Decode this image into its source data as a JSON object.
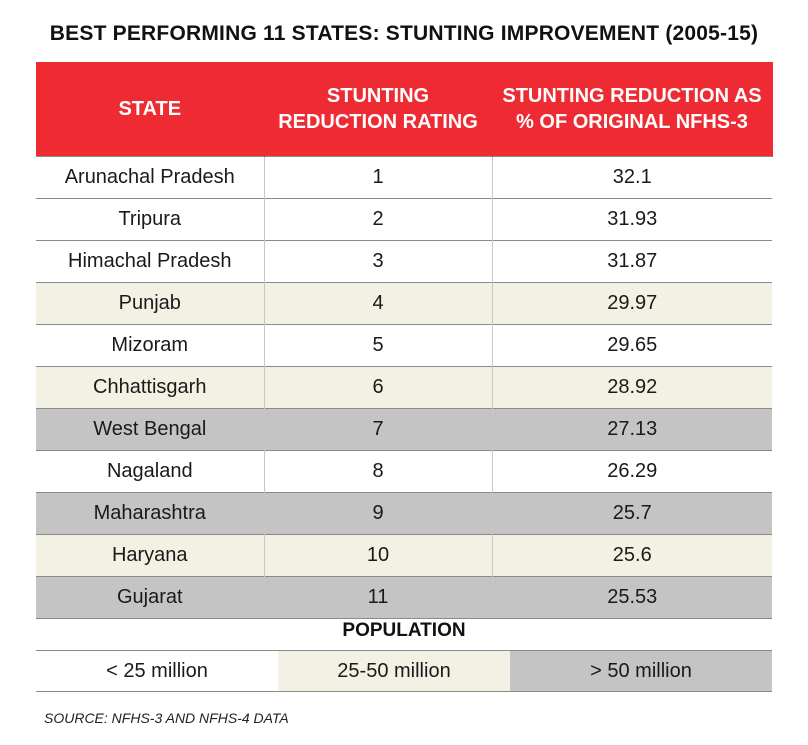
{
  "title": "BEST PERFORMING 11 STATES: STUNTING IMPROVEMENT (2005-15)",
  "colors": {
    "header_bg": "#ee2a33",
    "header_text": "#ffffff",
    "small_population": "#ffffff",
    "medium_population": "#f3f1e4",
    "large_population": "#c4c4c4"
  },
  "chart_data": {
    "type": "table",
    "columns": [
      "STATE",
      "STUNTING REDUCTION RATING",
      "STUNTING REDUCTION AS % OF ORIGINAL NFHS-3"
    ],
    "rows": [
      {
        "state": "Arunachal Pradesh",
        "rating": "1",
        "reduction": "32.1",
        "population": "small"
      },
      {
        "state": "Tripura",
        "rating": "2",
        "reduction": "31.93",
        "population": "small"
      },
      {
        "state": "Himachal Pradesh",
        "rating": "3",
        "reduction": "31.87",
        "population": "small"
      },
      {
        "state": "Punjab",
        "rating": "4",
        "reduction": "29.97",
        "population": "medium"
      },
      {
        "state": "Mizoram",
        "rating": "5",
        "reduction": "29.65",
        "population": "small"
      },
      {
        "state": "Chhattisgarh",
        "rating": "6",
        "reduction": "28.92",
        "population": "medium"
      },
      {
        "state": "West Bengal",
        "rating": "7",
        "reduction": "27.13",
        "population": "large"
      },
      {
        "state": "Nagaland",
        "rating": "8",
        "reduction": "26.29",
        "population": "small"
      },
      {
        "state": "Maharashtra",
        "rating": "9",
        "reduction": "25.7",
        "population": "large"
      },
      {
        "state": "Haryana",
        "rating": "10",
        "reduction": "25.6",
        "population": "medium"
      },
      {
        "state": "Gujarat",
        "rating": "11",
        "reduction": "25.53",
        "population": "large"
      }
    ]
  },
  "legend": {
    "title": "POPULATION",
    "items": [
      {
        "label": "< 25 million",
        "key": "small"
      },
      {
        "label": "25-50 million",
        "key": "medium"
      },
      {
        "label": "> 50 million",
        "key": "large"
      }
    ]
  },
  "source": "SOURCE: NFHS-3 AND NFHS-4 DATA"
}
